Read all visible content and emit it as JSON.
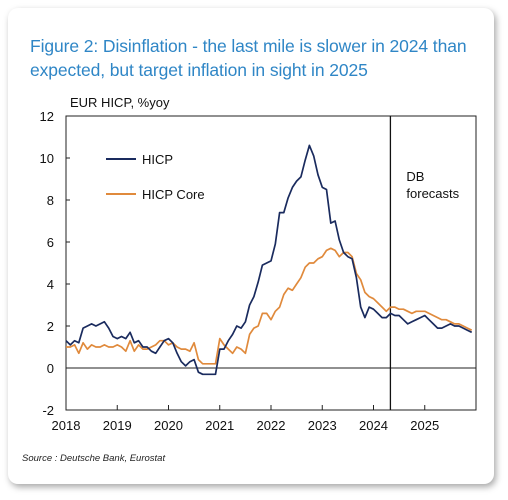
{
  "title": "Figure 2: Disinflation - the last mile is slower in 2024 than expected, but target inflation in sight in 2025",
  "source": "Source : Deutsche Bank, Eurostat",
  "chart_data": {
    "type": "line",
    "ylabel": "EUR HICP, %yoy",
    "ylim": [
      -2,
      12
    ],
    "yticks": [
      12,
      10,
      8,
      6,
      4,
      2,
      0,
      -2
    ],
    "xlim": [
      2018.0,
      2026.0
    ],
    "xticks": [
      "2018",
      "2019",
      "2020",
      "2021",
      "2022",
      "2023",
      "2024",
      "2025"
    ],
    "grid": false,
    "legend": "top-left",
    "annotation": {
      "text": [
        "DB",
        "forecasts"
      ],
      "x": 2024.33
    },
    "series": [
      {
        "name": "HICP",
        "color": "#1a2b5e",
        "points": [
          [
            2018.0,
            1.3
          ],
          [
            2018.083,
            1.1
          ],
          [
            2018.167,
            1.3
          ],
          [
            2018.25,
            1.2
          ],
          [
            2018.333,
            1.9
          ],
          [
            2018.417,
            2.0
          ],
          [
            2018.5,
            2.1
          ],
          [
            2018.583,
            2.0
          ],
          [
            2018.667,
            2.1
          ],
          [
            2018.75,
            2.2
          ],
          [
            2018.833,
            1.9
          ],
          [
            2018.917,
            1.5
          ],
          [
            2019.0,
            1.4
          ],
          [
            2019.083,
            1.5
          ],
          [
            2019.167,
            1.4
          ],
          [
            2019.25,
            1.7
          ],
          [
            2019.333,
            1.2
          ],
          [
            2019.417,
            1.3
          ],
          [
            2019.5,
            1.0
          ],
          [
            2019.583,
            1.0
          ],
          [
            2019.667,
            0.8
          ],
          [
            2019.75,
            0.7
          ],
          [
            2019.833,
            1.0
          ],
          [
            2019.917,
            1.3
          ],
          [
            2020.0,
            1.4
          ],
          [
            2020.083,
            1.2
          ],
          [
            2020.167,
            0.7
          ],
          [
            2020.25,
            0.3
          ],
          [
            2020.333,
            0.1
          ],
          [
            2020.417,
            0.3
          ],
          [
            2020.5,
            0.4
          ],
          [
            2020.583,
            -0.2
          ],
          [
            2020.667,
            -0.3
          ],
          [
            2020.75,
            -0.3
          ],
          [
            2020.833,
            -0.3
          ],
          [
            2020.917,
            -0.3
          ],
          [
            2021.0,
            0.9
          ],
          [
            2021.083,
            0.9
          ],
          [
            2021.167,
            1.3
          ],
          [
            2021.25,
            1.6
          ],
          [
            2021.333,
            2.0
          ],
          [
            2021.417,
            1.9
          ],
          [
            2021.5,
            2.2
          ],
          [
            2021.583,
            3.0
          ],
          [
            2021.667,
            3.4
          ],
          [
            2021.75,
            4.1
          ],
          [
            2021.833,
            4.9
          ],
          [
            2021.917,
            5.0
          ],
          [
            2022.0,
            5.1
          ],
          [
            2022.083,
            5.9
          ],
          [
            2022.167,
            7.4
          ],
          [
            2022.25,
            7.4
          ],
          [
            2022.333,
            8.1
          ],
          [
            2022.417,
            8.6
          ],
          [
            2022.5,
            8.9
          ],
          [
            2022.583,
            9.1
          ],
          [
            2022.667,
            9.9
          ],
          [
            2022.75,
            10.6
          ],
          [
            2022.833,
            10.1
          ],
          [
            2022.917,
            9.2
          ],
          [
            2023.0,
            8.6
          ],
          [
            2023.083,
            8.5
          ],
          [
            2023.167,
            6.9
          ],
          [
            2023.25,
            7.0
          ],
          [
            2023.333,
            6.1
          ],
          [
            2023.417,
            5.5
          ],
          [
            2023.5,
            5.3
          ],
          [
            2023.583,
            5.2
          ],
          [
            2023.667,
            4.3
          ],
          [
            2023.75,
            2.9
          ],
          [
            2023.833,
            2.4
          ],
          [
            2023.917,
            2.9
          ],
          [
            2024.0,
            2.8
          ],
          [
            2024.083,
            2.6
          ],
          [
            2024.167,
            2.4
          ],
          [
            2024.25,
            2.4
          ],
          [
            2024.333,
            2.6
          ],
          [
            2024.417,
            2.5
          ],
          [
            2024.5,
            2.5
          ],
          [
            2024.583,
            2.3
          ],
          [
            2024.667,
            2.1
          ],
          [
            2024.75,
            2.2
          ],
          [
            2024.833,
            2.3
          ],
          [
            2024.917,
            2.4
          ],
          [
            2025.0,
            2.5
          ],
          [
            2025.083,
            2.3
          ],
          [
            2025.167,
            2.1
          ],
          [
            2025.25,
            1.9
          ],
          [
            2025.333,
            1.9
          ],
          [
            2025.417,
            2.0
          ],
          [
            2025.5,
            2.1
          ],
          [
            2025.583,
            2.0
          ],
          [
            2025.667,
            2.0
          ],
          [
            2025.75,
            1.9
          ],
          [
            2025.833,
            1.8
          ],
          [
            2025.917,
            1.7
          ]
        ]
      },
      {
        "name": "HICP Core",
        "color": "#e08a3c",
        "points": [
          [
            2018.0,
            1.0
          ],
          [
            2018.083,
            1.0
          ],
          [
            2018.167,
            1.1
          ],
          [
            2018.25,
            0.7
          ],
          [
            2018.333,
            1.2
          ],
          [
            2018.417,
            0.9
          ],
          [
            2018.5,
            1.1
          ],
          [
            2018.583,
            1.0
          ],
          [
            2018.667,
            1.0
          ],
          [
            2018.75,
            1.1
          ],
          [
            2018.833,
            1.0
          ],
          [
            2018.917,
            1.0
          ],
          [
            2019.0,
            1.1
          ],
          [
            2019.083,
            1.0
          ],
          [
            2019.167,
            0.8
          ],
          [
            2019.25,
            1.3
          ],
          [
            2019.333,
            0.8
          ],
          [
            2019.417,
            1.1
          ],
          [
            2019.5,
            0.9
          ],
          [
            2019.583,
            0.9
          ],
          [
            2019.667,
            1.0
          ],
          [
            2019.75,
            1.1
          ],
          [
            2019.833,
            1.3
          ],
          [
            2019.917,
            1.3
          ],
          [
            2020.0,
            1.1
          ],
          [
            2020.083,
            1.2
          ],
          [
            2020.167,
            1.0
          ],
          [
            2020.25,
            0.9
          ],
          [
            2020.333,
            0.9
          ],
          [
            2020.417,
            0.8
          ],
          [
            2020.5,
            1.2
          ],
          [
            2020.583,
            0.4
          ],
          [
            2020.667,
            0.2
          ],
          [
            2020.75,
            0.2
          ],
          [
            2020.833,
            0.2
          ],
          [
            2020.917,
            0.2
          ],
          [
            2021.0,
            1.4
          ],
          [
            2021.083,
            1.1
          ],
          [
            2021.167,
            0.9
          ],
          [
            2021.25,
            0.7
          ],
          [
            2021.333,
            1.0
          ],
          [
            2021.417,
            0.9
          ],
          [
            2021.5,
            0.7
          ],
          [
            2021.583,
            1.6
          ],
          [
            2021.667,
            1.9
          ],
          [
            2021.75,
            2.0
          ],
          [
            2021.833,
            2.6
          ],
          [
            2021.917,
            2.6
          ],
          [
            2022.0,
            2.3
          ],
          [
            2022.083,
            2.7
          ],
          [
            2022.167,
            2.9
          ],
          [
            2022.25,
            3.5
          ],
          [
            2022.333,
            3.8
          ],
          [
            2022.417,
            3.7
          ],
          [
            2022.5,
            4.0
          ],
          [
            2022.583,
            4.3
          ],
          [
            2022.667,
            4.8
          ],
          [
            2022.75,
            5.0
          ],
          [
            2022.833,
            5.0
          ],
          [
            2022.917,
            5.2
          ],
          [
            2023.0,
            5.3
          ],
          [
            2023.083,
            5.6
          ],
          [
            2023.167,
            5.7
          ],
          [
            2023.25,
            5.6
          ],
          [
            2023.333,
            5.3
          ],
          [
            2023.417,
            5.5
          ],
          [
            2023.5,
            5.5
          ],
          [
            2023.583,
            5.3
          ],
          [
            2023.667,
            4.5
          ],
          [
            2023.75,
            4.2
          ],
          [
            2023.833,
            3.6
          ],
          [
            2023.917,
            3.4
          ],
          [
            2024.0,
            3.3
          ],
          [
            2024.083,
            3.1
          ],
          [
            2024.167,
            2.9
          ],
          [
            2024.25,
            2.7
          ],
          [
            2024.333,
            2.9
          ],
          [
            2024.417,
            2.9
          ],
          [
            2024.5,
            2.8
          ],
          [
            2024.583,
            2.8
          ],
          [
            2024.667,
            2.7
          ],
          [
            2024.75,
            2.6
          ],
          [
            2024.833,
            2.7
          ],
          [
            2024.917,
            2.7
          ],
          [
            2025.0,
            2.7
          ],
          [
            2025.083,
            2.6
          ],
          [
            2025.167,
            2.5
          ],
          [
            2025.25,
            2.4
          ],
          [
            2025.333,
            2.3
          ],
          [
            2025.417,
            2.3
          ],
          [
            2025.5,
            2.2
          ],
          [
            2025.583,
            2.1
          ],
          [
            2025.667,
            2.1
          ],
          [
            2025.75,
            2.0
          ],
          [
            2025.833,
            1.9
          ],
          [
            2025.917,
            1.8
          ]
        ]
      }
    ]
  }
}
